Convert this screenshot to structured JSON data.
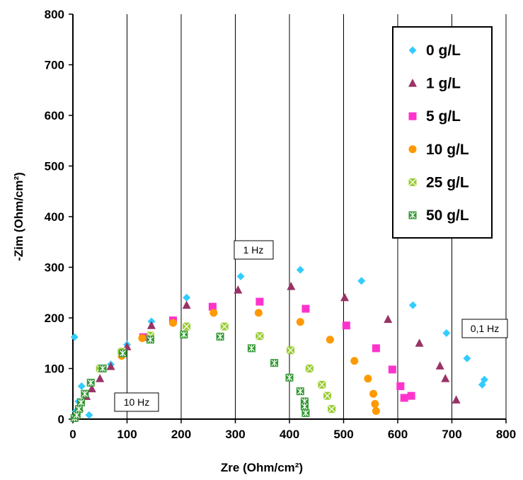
{
  "chart_data": {
    "type": "scatter",
    "xlabel": "Zre (Ohm/cm²)",
    "ylabel": "-Zim (Ohm/cm²)",
    "xlim": [
      0,
      800
    ],
    "ylim": [
      0,
      800
    ],
    "xticks": [
      "0",
      "100",
      "200",
      "300",
      "400",
      "500",
      "600",
      "700",
      "800"
    ],
    "yticks": [
      "0",
      "100",
      "200",
      "300",
      "400",
      "500",
      "600",
      "700",
      "800"
    ],
    "grid": "vertical",
    "legend_position": "top-right",
    "annotations": [
      {
        "text": "1 Hz"
      },
      {
        "text": "10 Hz"
      },
      {
        "text": "0,1 Hz"
      }
    ],
    "series": [
      {
        "name": "0 g/L",
        "marker": "diamond",
        "color": "#33ccff",
        "points": [
          [
            3,
            162
          ],
          [
            30,
            8
          ],
          [
            16,
            65
          ],
          [
            10,
            35
          ],
          [
            5,
            15
          ],
          [
            70,
            108
          ],
          [
            100,
            147
          ],
          [
            145,
            193
          ],
          [
            210,
            240
          ],
          [
            310,
            282
          ],
          [
            420,
            295
          ],
          [
            533,
            273
          ],
          [
            628,
            225
          ],
          [
            690,
            170
          ],
          [
            728,
            120
          ],
          [
            760,
            78
          ],
          [
            756,
            68
          ]
        ]
      },
      {
        "name": "1 g/L",
        "marker": "triangle",
        "color": "#993366",
        "points": [
          [
            5,
            5
          ],
          [
            12,
            22
          ],
          [
            25,
            45
          ],
          [
            35,
            60
          ],
          [
            50,
            80
          ],
          [
            70,
            104
          ],
          [
            100,
            143
          ],
          [
            145,
            185
          ],
          [
            210,
            225
          ],
          [
            305,
            255
          ],
          [
            403,
            262
          ],
          [
            502,
            240
          ],
          [
            582,
            197
          ],
          [
            640,
            150
          ],
          [
            678,
            105
          ],
          [
            688,
            80
          ],
          [
            708,
            38
          ]
        ]
      },
      {
        "name": "5 g/L",
        "marker": "square",
        "color": "#ff33cc",
        "points": [
          [
            130,
            162
          ],
          [
            185,
            195
          ],
          [
            258,
            222
          ],
          [
            345,
            232
          ],
          [
            430,
            218
          ],
          [
            505,
            185
          ],
          [
            560,
            140
          ],
          [
            590,
            98
          ],
          [
            605,
            65
          ],
          [
            612,
            42
          ],
          [
            625,
            46
          ]
        ]
      },
      {
        "name": "10 g/L",
        "marker": "circle",
        "color": "#ff9900",
        "points": [
          [
            90,
            125
          ],
          [
            128,
            160
          ],
          [
            185,
            190
          ],
          [
            260,
            210
          ],
          [
            343,
            210
          ],
          [
            420,
            192
          ],
          [
            475,
            157
          ],
          [
            520,
            115
          ],
          [
            545,
            80
          ],
          [
            555,
            50
          ],
          [
            558,
            30
          ],
          [
            560,
            16
          ]
        ]
      },
      {
        "name": "25 g/L",
        "marker": "square-x",
        "color": "#99cc33",
        "points": [
          [
            50,
            100
          ],
          [
            90,
            133
          ],
          [
            143,
            165
          ],
          [
            210,
            183
          ],
          [
            280,
            183
          ],
          [
            345,
            164
          ],
          [
            402,
            136
          ],
          [
            437,
            100
          ],
          [
            460,
            68
          ],
          [
            470,
            46
          ],
          [
            478,
            20
          ]
        ]
      },
      {
        "name": "50 g/L",
        "marker": "square-star",
        "color": "#339933",
        "points": [
          [
            3,
            2
          ],
          [
            7,
            8
          ],
          [
            11,
            20
          ],
          [
            15,
            33
          ],
          [
            22,
            50
          ],
          [
            33,
            72
          ],
          [
            55,
            100
          ],
          [
            92,
            130
          ],
          [
            143,
            157
          ],
          [
            205,
            167
          ],
          [
            272,
            163
          ],
          [
            330,
            140
          ],
          [
            372,
            111
          ],
          [
            400,
            82
          ],
          [
            420,
            55
          ],
          [
            428,
            35
          ],
          [
            428,
            25
          ],
          [
            430,
            12
          ]
        ]
      }
    ]
  }
}
